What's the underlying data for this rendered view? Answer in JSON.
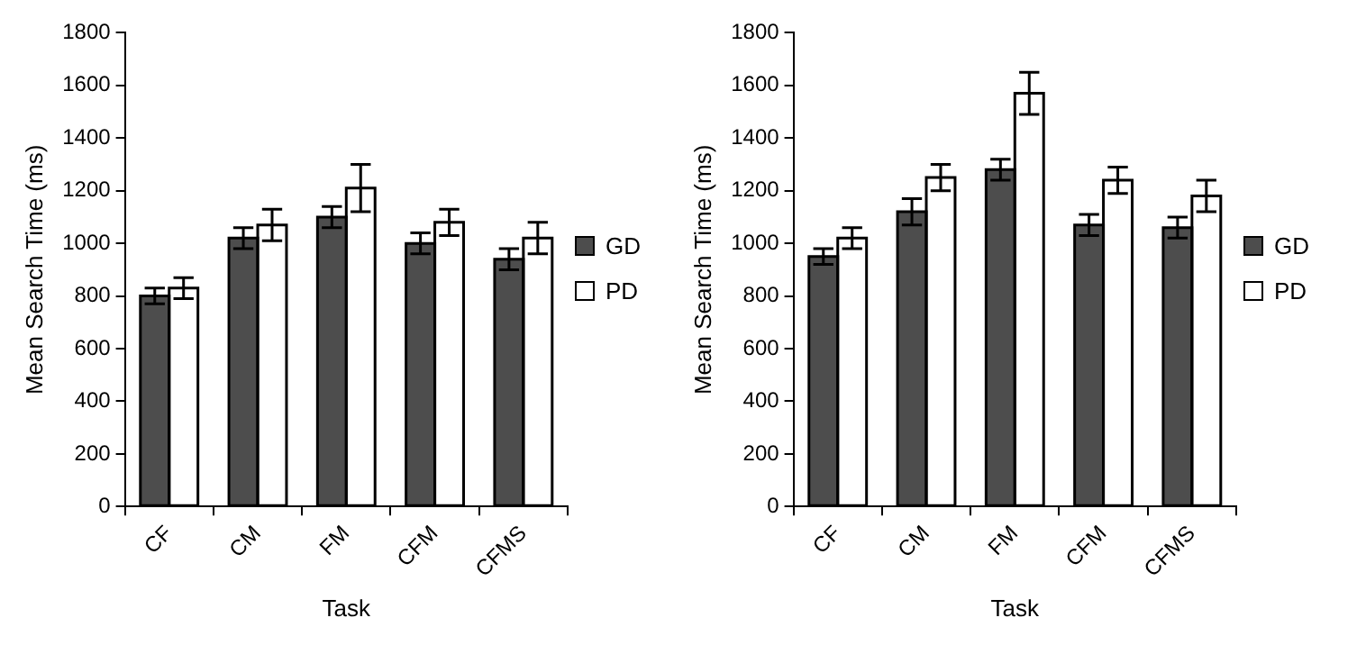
{
  "chart_data": [
    {
      "type": "bar",
      "categories": [
        "CF",
        "CM",
        "FM",
        "CFM",
        "CFMS"
      ],
      "xlabel": "Task",
      "ylabel": "Mean Search Time (ms)",
      "ylim": [
        0,
        1800
      ],
      "yticks": [
        0,
        200,
        400,
        600,
        800,
        1000,
        1200,
        1400,
        1600,
        1800
      ],
      "grid": false,
      "legend": "right",
      "series": [
        {
          "name": "GD",
          "color": "#4d4d4d",
          "values": [
            800,
            1020,
            1100,
            1000,
            940
          ],
          "errors": [
            30,
            40,
            40,
            40,
            40
          ]
        },
        {
          "name": "PD",
          "color": "#ffffff",
          "values": [
            830,
            1070,
            1210,
            1080,
            1020
          ],
          "errors": [
            40,
            60,
            90,
            50,
            60
          ]
        }
      ]
    },
    {
      "type": "bar",
      "categories": [
        "CF",
        "CM",
        "FM",
        "CFM",
        "CFMS"
      ],
      "xlabel": "Task",
      "ylabel": "Mean Search Time (ms)",
      "ylim": [
        0,
        1800
      ],
      "yticks": [
        0,
        200,
        400,
        600,
        800,
        1000,
        1200,
        1400,
        1600,
        1800
      ],
      "grid": false,
      "legend": "right",
      "series": [
        {
          "name": "GD",
          "color": "#4d4d4d",
          "values": [
            950,
            1120,
            1280,
            1070,
            1060
          ],
          "errors": [
            30,
            50,
            40,
            40,
            40
          ]
        },
        {
          "name": "PD",
          "color": "#ffffff",
          "values": [
            1020,
            1250,
            1570,
            1240,
            1180
          ],
          "errors": [
            40,
            50,
            80,
            50,
            60
          ]
        }
      ]
    }
  ]
}
